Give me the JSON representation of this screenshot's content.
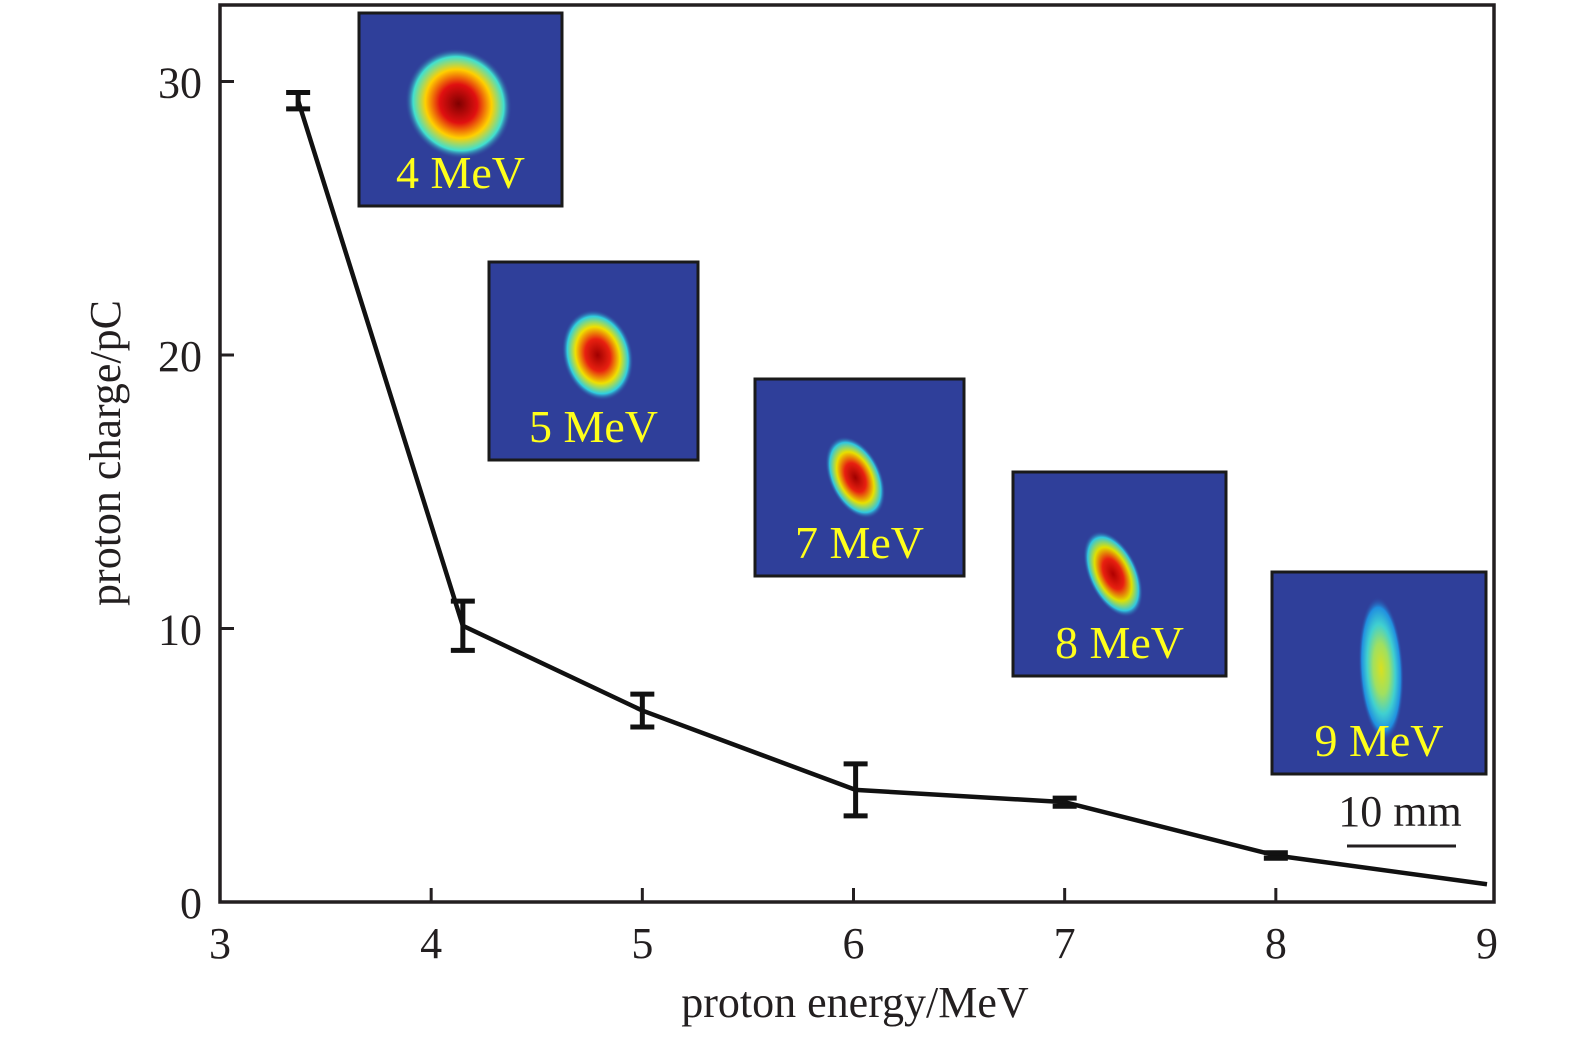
{
  "chart_data": {
    "type": "line",
    "title": "",
    "xlabel": "proton energy/MeV",
    "ylabel": "proton charge/pC",
    "xlim": [
      3,
      9
    ],
    "ylim": [
      0,
      33
    ],
    "xticks": [
      3,
      4,
      5,
      6,
      7,
      8,
      9
    ],
    "yticks": [
      0,
      10,
      20,
      30
    ],
    "grid": false,
    "legend": null,
    "series": [
      {
        "name": "proton charge",
        "color": "#111111",
        "x": [
          3.37,
          4.15,
          5.0,
          6.01,
          7.0,
          8.0,
          9.0
        ],
        "y": [
          29.3,
          10.1,
          7.0,
          4.1,
          3.65,
          1.7,
          0.65
        ],
        "error": [
          0.3,
          0.9,
          0.6,
          0.95,
          0.15,
          0.1,
          null
        ]
      }
    ],
    "insets": [
      {
        "label": "4 MeV",
        "energy": 4,
        "spot_colors": [
          "#7f0000",
          "#e01010",
          "#ffd000",
          "#40e0d0"
        ],
        "spot_shape": "large-round"
      },
      {
        "label": "5 MeV",
        "energy": 5,
        "spot_colors": [
          "#a00000",
          "#e82010",
          "#f0e000",
          "#30d0e0"
        ],
        "spot_shape": "medium-oval"
      },
      {
        "label": "7 MeV",
        "energy": 7,
        "spot_colors": [
          "#a00000",
          "#e82010",
          "#e8e000",
          "#30c8e0"
        ],
        "spot_shape": "small-tilted"
      },
      {
        "label": "8 MeV",
        "energy": 8,
        "spot_colors": [
          "#b00000",
          "#e82010",
          "#e0e000",
          "#30c8e0"
        ],
        "spot_shape": "small-teardrop"
      },
      {
        "label": "9 MeV",
        "energy": 9,
        "spot_colors": [
          "#d8e020",
          "#a0e060",
          "#40d0d0",
          "#2090e0"
        ],
        "spot_shape": "elongated-vertical"
      }
    ],
    "inset_background": "#2f3f9a",
    "inset_label_color": "#ffff1a",
    "annotations": [
      {
        "text": "10 mm",
        "type": "scale-bar"
      }
    ]
  }
}
